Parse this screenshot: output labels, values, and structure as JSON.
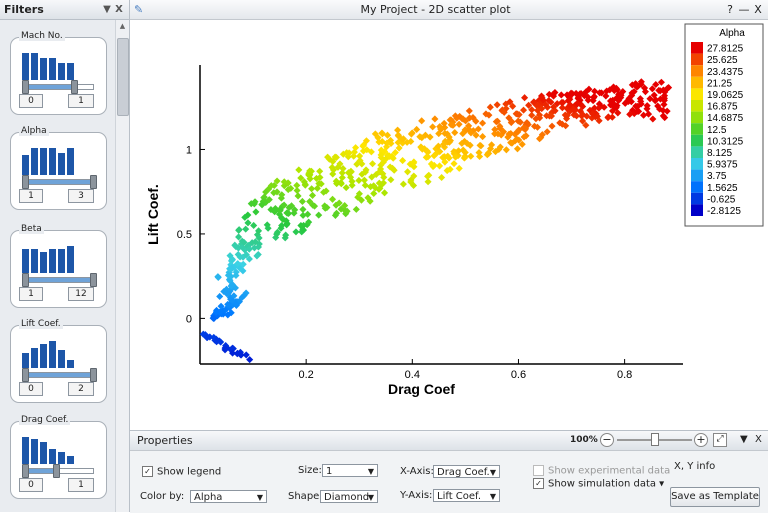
{
  "window": {
    "title": "My Project - 2D scatter plot",
    "help": "?",
    "minimize": "—",
    "close": "X",
    "pin_icon": "pin-icon"
  },
  "filters": {
    "title": "Filters",
    "menu_icon": "▼",
    "close": "X",
    "items": [
      {
        "label": "Mach No.",
        "min": "0",
        "max": "1",
        "bars": [
          27,
          27,
          22,
          22,
          17,
          17
        ],
        "range": [
          0,
          0.72
        ]
      },
      {
        "label": "Alpha",
        "min": "1",
        "max": "3",
        "bars": [
          20,
          27,
          27,
          27,
          22,
          27
        ],
        "range": [
          0,
          1
        ]
      },
      {
        "label": "Beta",
        "min": "1",
        "max": "12",
        "bars": [
          24,
          24,
          21,
          24,
          24,
          27
        ],
        "range": [
          0,
          1
        ]
      },
      {
        "label": "Lift Coef.",
        "min": "0",
        "max": "2",
        "bars": [
          15,
          20,
          24,
          27,
          18,
          8
        ],
        "range": [
          0,
          1
        ]
      },
      {
        "label": "Drag Coef.",
        "min": "0",
        "max": "1",
        "bars": [
          27,
          25,
          22,
          15,
          12,
          8
        ],
        "range": [
          0,
          0.45
        ]
      }
    ]
  },
  "chart_data": {
    "type": "scatter",
    "xlabel": "Drag Coef",
    "ylabel": "Lift Coef.",
    "xlim": [
      0,
      0.91
    ],
    "ylim": [
      -0.27,
      1.5
    ],
    "xticks": [
      0.2,
      0.4,
      0.6,
      0.8
    ],
    "yticks": [
      0,
      0.5,
      1
    ],
    "colorbar": {
      "title": "Alpha",
      "labels": [
        "27.8125",
        "25.625",
        "23.4375",
        "21.25",
        "19.0625",
        "16.875",
        "14.6875",
        "12.5",
        "10.3125",
        "8.125",
        "5.9375",
        "3.75",
        "1.5625",
        "-0.625",
        "-2.8125"
      ],
      "vmin": -2.8125,
      "vmax": 27.8125
    },
    "series": [
      {
        "kind": "upper-band",
        "x": [
          0.06,
          0.1,
          0.15,
          0.2,
          0.28,
          0.35,
          0.42,
          0.5,
          0.58,
          0.66,
          0.74,
          0.82,
          0.9
        ],
        "y": [
          0.45,
          0.7,
          0.82,
          0.9,
          1.02,
          1.1,
          1.16,
          1.22,
          1.28,
          1.33,
          1.36,
          1.39,
          1.41
        ]
      },
      {
        "kind": "lower-band",
        "x": [
          0.05,
          0.07,
          0.1,
          0.14,
          0.2,
          0.28,
          0.36,
          0.44,
          0.52,
          0.6,
          0.68,
          0.72
        ],
        "y": [
          0.05,
          0.2,
          0.32,
          0.42,
          0.52,
          0.62,
          0.72,
          0.82,
          0.92,
          1.02,
          1.12,
          1.18
        ]
      },
      {
        "kind": "low-alpha",
        "x": [
          0.0,
          0.03,
          0.05,
          0.07,
          0.09,
          0.095
        ],
        "y": [
          -0.1,
          -0.13,
          -0.18,
          -0.2,
          -0.22,
          -0.25
        ]
      },
      {
        "kind": "low-alpha-2",
        "x": [
          0.02,
          0.04,
          0.06,
          0.08,
          0.09
        ],
        "y": [
          0.0,
          0.03,
          0.08,
          0.12,
          0.15
        ]
      }
    ]
  },
  "properties": {
    "title": "Properties",
    "zoom": "100%",
    "menu_icon": "▼",
    "close": "X",
    "show_legend": "Show legend",
    "show_legend_checked": true,
    "color_by_label": "Color by:",
    "color_by": "Alpha",
    "size_label": "Size:",
    "size": "1",
    "shape_label": "Shape:",
    "shape": "Diamond",
    "xaxis_label": "X-Axis:",
    "xaxis": "Drag Coef.",
    "yaxis_label": "Y-Axis:",
    "yaxis": "Lift Coef.",
    "show_experimental": "Show experimental data",
    "show_simulation": "Show simulation data ▾",
    "xy_info": "X, Y info",
    "save_template": "Save as Template"
  }
}
